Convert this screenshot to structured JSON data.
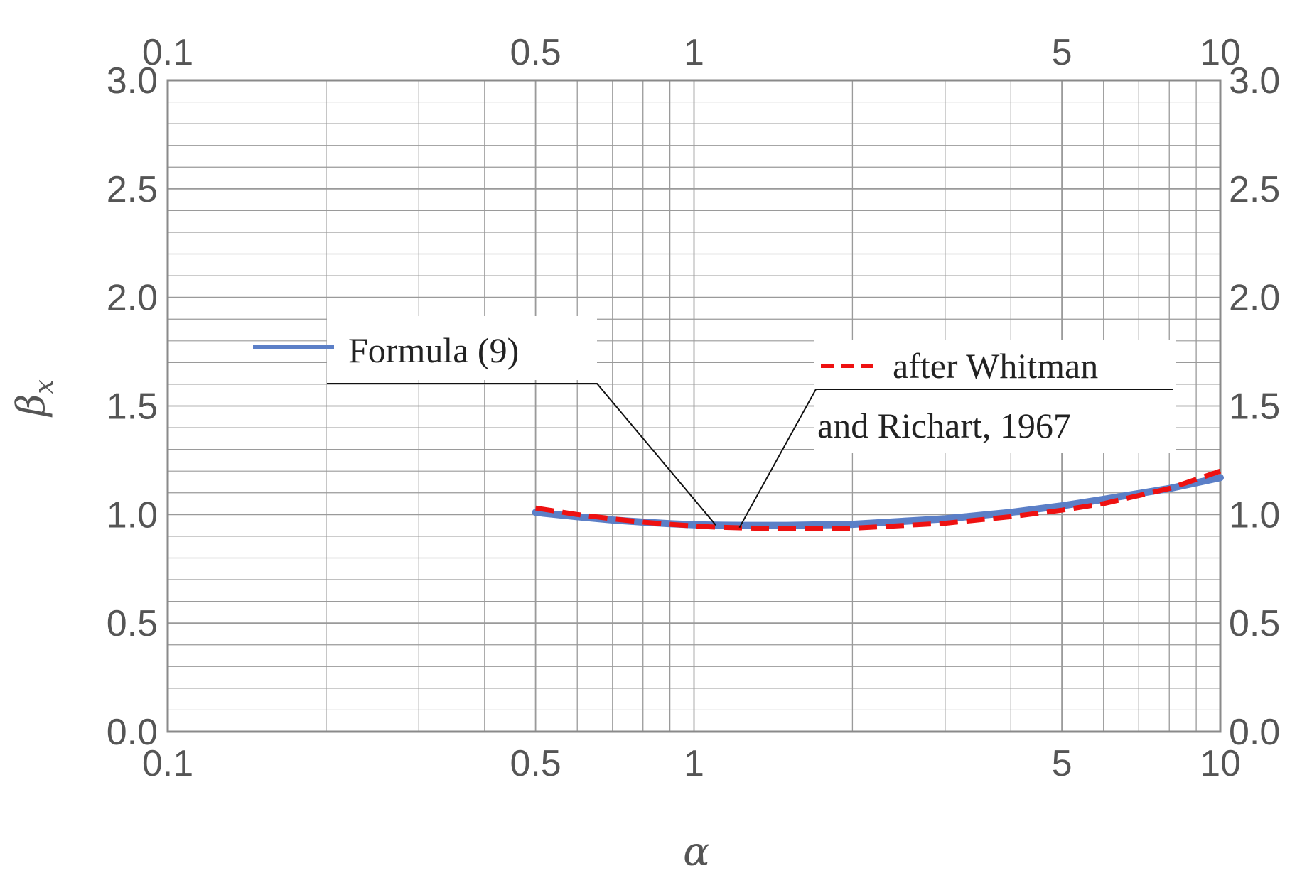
{
  "chart_data": {
    "type": "line",
    "title": "",
    "xlabel": "α",
    "ylabel_main": "β",
    "ylabel_sub": "x",
    "x_scale": "log",
    "xlim": [
      0.1,
      10
    ],
    "ylim": [
      0,
      3
    ],
    "grid": true,
    "x_ticks": [
      0.1,
      0.5,
      1,
      5,
      10
    ],
    "x_tick_labels": [
      "0.1",
      "0.5",
      "1",
      "5",
      "10"
    ],
    "x_minor_ticks": [
      0.2,
      0.3,
      0.4,
      0.6,
      0.7,
      0.8,
      0.9,
      2,
      3,
      4,
      6,
      7,
      8,
      9
    ],
    "y_ticks": [
      0,
      0.5,
      1,
      1.5,
      2,
      2.5,
      3
    ],
    "y_tick_labels": [
      "0.0",
      "0.5",
      "1.0",
      "1.5",
      "2.0",
      "2.5",
      "3.0"
    ],
    "y_minor_step": 0.1,
    "colors": {
      "formula": "#5b7fc7",
      "whitman": "#ee1111",
      "grid": "#9a9a9a",
      "frame": "#8a8a8a"
    },
    "series": [
      {
        "name": "Formula (9)",
        "style": "solid",
        "color": "#5b7fc7",
        "x": [
          0.5,
          0.6,
          0.7,
          0.8,
          0.9,
          1.0,
          1.1,
          1.25,
          1.5,
          2,
          3,
          4,
          5,
          6,
          8,
          10
        ],
        "y": [
          1.01,
          0.99,
          0.975,
          0.965,
          0.958,
          0.953,
          0.951,
          0.95,
          0.95,
          0.955,
          0.98,
          1.01,
          1.04,
          1.07,
          1.12,
          1.17
        ]
      },
      {
        "name": "after Whitman and Richart, 1967",
        "style": "dashed",
        "color": "#ee1111",
        "x": [
          0.5,
          0.6,
          0.7,
          0.8,
          0.9,
          1.0,
          1.1,
          1.25,
          1.5,
          2,
          3,
          4,
          5,
          6,
          8,
          10
        ],
        "y": [
          1.03,
          1.0,
          0.98,
          0.965,
          0.955,
          0.947,
          0.942,
          0.938,
          0.935,
          0.937,
          0.96,
          0.99,
          1.02,
          1.05,
          1.12,
          1.2
        ]
      }
    ],
    "legend": [
      {
        "label": "Formula (9)",
        "style": "solid",
        "color": "#5b7fc7",
        "points_to": [
          1.1,
          0.951
        ]
      },
      {
        "label_line1": "after Whitman",
        "label_line2": "and Richart, 1967",
        "style": "dashed",
        "color": "#ee1111",
        "points_to": [
          1.22,
          0.94
        ]
      }
    ]
  }
}
